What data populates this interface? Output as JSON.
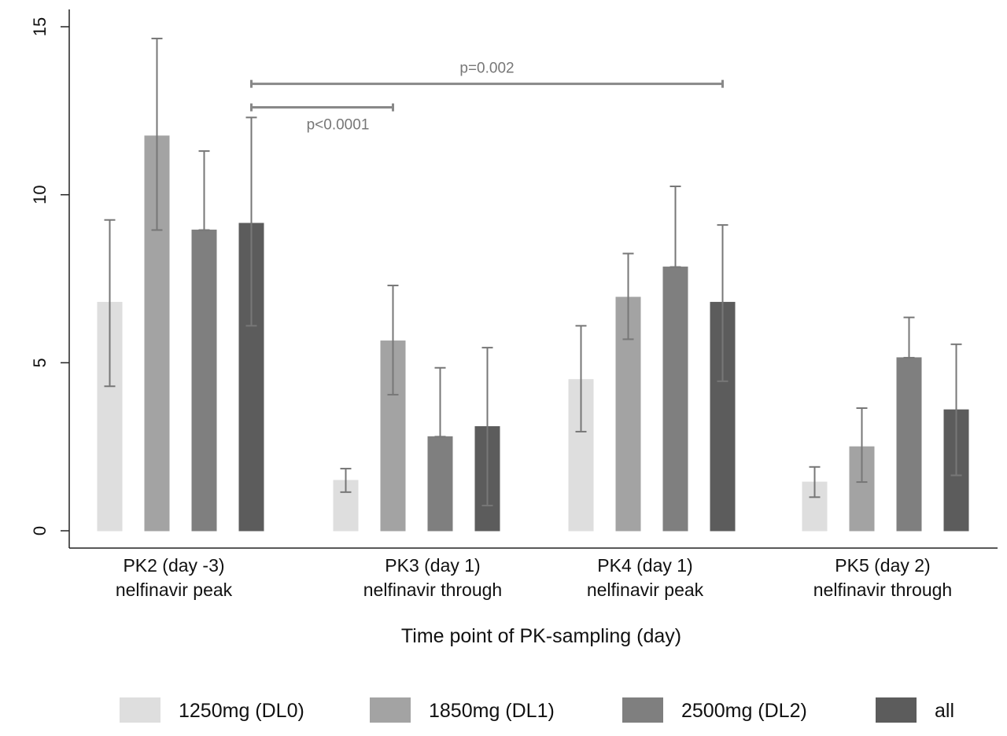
{
  "chart_data": {
    "type": "bar",
    "title": "",
    "xlabel": "Time point of PK-sampling (day)",
    "ylabel": "",
    "ylim": [
      0,
      15
    ],
    "yticks": [
      "0",
      "5",
      "10",
      "15"
    ],
    "grid": false,
    "legend_position": "bottom",
    "categories": [
      {
        "line1": "PK2 (day -3)",
        "line2": "nelfinavir peak"
      },
      {
        "line1": "PK3 (day 1)",
        "line2": "nelfinavir through"
      },
      {
        "line1": "PK4 (day 1)",
        "line2": "nelfinavir peak"
      },
      {
        "line1": "PK5 (day 2)",
        "line2": "nelfinavir through"
      }
    ],
    "series": [
      {
        "name": "1250mg (DL0)",
        "color": "#dedede",
        "values": [
          6.8,
          1.5,
          4.5,
          1.45
        ],
        "error_low": [
          4.3,
          1.15,
          2.95,
          1.0
        ],
        "error_high": [
          9.25,
          1.85,
          6.1,
          1.9
        ]
      },
      {
        "name": "1850mg (DL1)",
        "color": "#a3a3a3",
        "values": [
          11.75,
          5.65,
          6.95,
          2.5
        ],
        "error_low": [
          8.95,
          4.05,
          5.7,
          1.45
        ],
        "error_high": [
          14.65,
          7.3,
          8.25,
          3.65
        ]
      },
      {
        "name": "2500mg (DL2)",
        "color": "#7f7f7f",
        "values": [
          8.95,
          2.8,
          7.85,
          5.15
        ],
        "error_low": [
          8.95,
          2.8,
          7.85,
          5.15
        ],
        "error_high": [
          11.3,
          4.85,
          10.25,
          6.35
        ]
      },
      {
        "name": "all",
        "color": "#5c5c5c",
        "values": [
          9.15,
          3.1,
          6.8,
          3.6
        ],
        "error_low": [
          6.1,
          0.75,
          4.45,
          1.65
        ],
        "error_high": [
          12.3,
          5.45,
          9.1,
          5.55
        ]
      }
    ],
    "annotations": [
      {
        "text": "p=0.002",
        "from": {
          "category": 0,
          "series": 3
        },
        "to": {
          "category": 2,
          "series": 3
        },
        "level": 13.3
      },
      {
        "text": "p<0.0001",
        "from": {
          "category": 0,
          "series": 3
        },
        "to": {
          "category": 1,
          "series": 1
        },
        "level": 12.6
      }
    ]
  }
}
